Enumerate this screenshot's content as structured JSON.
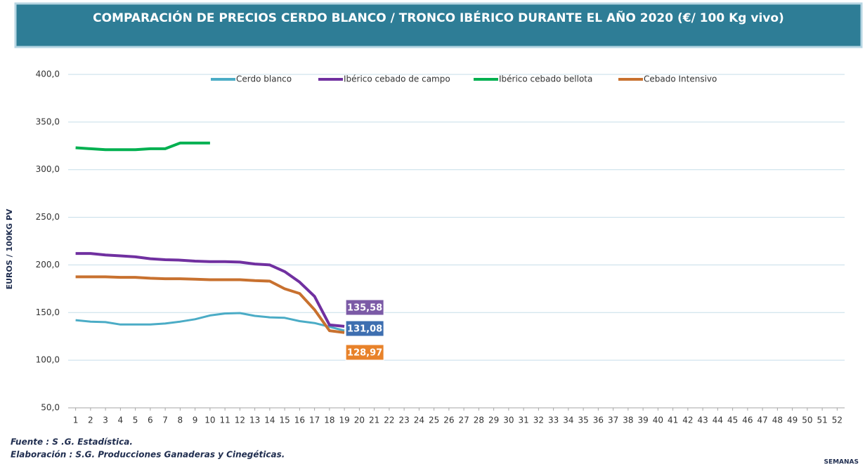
{
  "chart_data": {
    "type": "line",
    "title": "COMPARACIÓN DE PRECIOS CERDO BLANCO / TRONCO IBÉRICO DURANTE EL AÑO 2020 (€/ 100 Kg vivo)",
    "y_label": "EUROS / 100KG PV",
    "x_label": "SEMANAS",
    "source": "Fuente :  S .G. Estadística.",
    "credit": "Elaboración : S.G. Producciones Ganaderas y Cinegéticas.",
    "x": [
      1,
      2,
      3,
      4,
      5,
      6,
      7,
      8,
      9,
      10,
      11,
      12,
      13,
      14,
      15,
      16,
      17,
      18,
      19,
      20,
      21,
      22,
      23,
      24,
      25,
      26,
      27,
      28,
      29,
      30,
      31,
      32,
      33,
      34,
      35,
      36,
      37,
      38,
      39,
      40,
      41,
      42,
      43,
      44,
      45,
      46,
      47,
      48,
      49,
      50,
      51,
      52
    ],
    "xlim": [
      0.5,
      52.5
    ],
    "xticks": [
      1,
      2,
      3,
      4,
      5,
      6,
      7,
      8,
      9,
      10,
      11,
      12,
      13,
      14,
      15,
      16,
      17,
      18,
      19,
      20,
      21,
      22,
      23,
      24,
      25,
      26,
      27,
      28,
      29,
      30,
      31,
      32,
      33,
      34,
      35,
      36,
      37,
      38,
      39,
      40,
      41,
      42,
      43,
      44,
      45,
      46,
      47,
      48,
      49,
      50,
      51,
      52
    ],
    "ylim": [
      50,
      400
    ],
    "yticks": [
      {
        "value": 50,
        "label": "50,0"
      },
      {
        "value": 100,
        "label": "100,0"
      },
      {
        "value": 150,
        "label": "150,0"
      },
      {
        "value": 200,
        "label": "200,0"
      },
      {
        "value": 250,
        "label": "250,0"
      },
      {
        "value": 300,
        "label": "300,0"
      },
      {
        "value": 350,
        "label": "350,0"
      },
      {
        "value": 400,
        "label": "400,0"
      }
    ],
    "grid": true,
    "legend": "top",
    "series": [
      {
        "name": "Cerdo blanco",
        "color": "#4bacc6",
        "label_color": "#3e6fb0",
        "values": [
          142,
          140.5,
          140,
          137.5,
          137.5,
          137.5,
          138.5,
          140.5,
          143,
          147,
          149,
          149.5,
          146.5,
          145,
          144.5,
          141,
          139,
          135,
          131.08,
          null,
          null,
          null,
          null,
          null,
          null,
          null,
          null,
          null,
          null,
          null,
          null,
          null,
          null,
          null,
          null,
          null,
          null,
          null,
          null,
          null,
          null,
          null,
          null,
          null,
          null,
          null,
          null,
          null,
          null,
          null,
          null,
          null
        ],
        "value_labels": [
          null,
          null,
          null,
          null,
          null,
          null,
          null,
          null,
          null,
          null,
          null,
          null,
          null,
          null,
          null,
          null,
          null,
          null,
          "131,08",
          null,
          null,
          null,
          null,
          null,
          null,
          null,
          null,
          null,
          null,
          null,
          null,
          null,
          null,
          null,
          null,
          null,
          null,
          null,
          null,
          null,
          null,
          null,
          null,
          null,
          null,
          null,
          null,
          null,
          null,
          null,
          null,
          null
        ]
      },
      {
        "name": "Ibérico cebado de campo",
        "color": "#7030a0",
        "label_color": "#7b5aa6",
        "values": [
          212,
          212,
          210.5,
          209.5,
          208.5,
          206.5,
          205.5,
          205,
          204,
          203.5,
          203.5,
          203,
          201,
          200,
          193,
          182,
          167,
          137,
          135.58,
          null,
          null,
          null,
          null,
          null,
          null,
          null,
          null,
          null,
          null,
          null,
          null,
          null,
          null,
          null,
          null,
          null,
          null,
          null,
          null,
          null,
          null,
          null,
          null,
          null,
          null,
          null,
          null,
          null,
          null,
          null,
          null,
          null
        ],
        "value_labels": [
          null,
          null,
          null,
          null,
          null,
          null,
          null,
          null,
          null,
          null,
          null,
          null,
          null,
          null,
          null,
          null,
          null,
          null,
          "135,58",
          null,
          null,
          null,
          null,
          null,
          null,
          null,
          null,
          null,
          null,
          null,
          null,
          null,
          null,
          null,
          null,
          null,
          null,
          null,
          null,
          null,
          null,
          null,
          null,
          null,
          null,
          null,
          null,
          null,
          null,
          null,
          null,
          null
        ]
      },
      {
        "name": "Ibérico cebado bellota",
        "color": "#00b050",
        "values": [
          323,
          322,
          321,
          321,
          321,
          322,
          322,
          328,
          328,
          328,
          null,
          null,
          null,
          null,
          null,
          null,
          null,
          null,
          null,
          null,
          null,
          null,
          null,
          null,
          null,
          null,
          null,
          null,
          null,
          null,
          null,
          null,
          null,
          null,
          null,
          null,
          null,
          null,
          null,
          null,
          null,
          null,
          null,
          null,
          null,
          null,
          null,
          null,
          null,
          null,
          null,
          null
        ]
      },
      {
        "name": "Cebado Intensivo",
        "color": "#c8712f",
        "label_color": "#e8822a",
        "values": [
          187.5,
          187.5,
          187.5,
          187,
          187,
          186,
          185.5,
          185.5,
          185,
          184.5,
          184.5,
          184.5,
          183.5,
          183,
          175,
          170,
          153,
          131,
          128.97,
          null,
          null,
          null,
          null,
          null,
          null,
          null,
          null,
          null,
          null,
          null,
          null,
          null,
          null,
          null,
          null,
          null,
          null,
          null,
          null,
          null,
          null,
          null,
          null,
          null,
          null,
          null,
          null,
          null,
          null,
          null,
          null,
          null
        ],
        "value_labels": [
          null,
          null,
          null,
          null,
          null,
          null,
          null,
          null,
          null,
          null,
          null,
          null,
          null,
          null,
          null,
          null,
          null,
          null,
          "128,97",
          null,
          null,
          null,
          null,
          null,
          null,
          null,
          null,
          null,
          null,
          null,
          null,
          null,
          null,
          null,
          null,
          null,
          null,
          null,
          null,
          null,
          null,
          null,
          null,
          null,
          null,
          null,
          null,
          null,
          null,
          null,
          null,
          null
        ]
      }
    ]
  }
}
